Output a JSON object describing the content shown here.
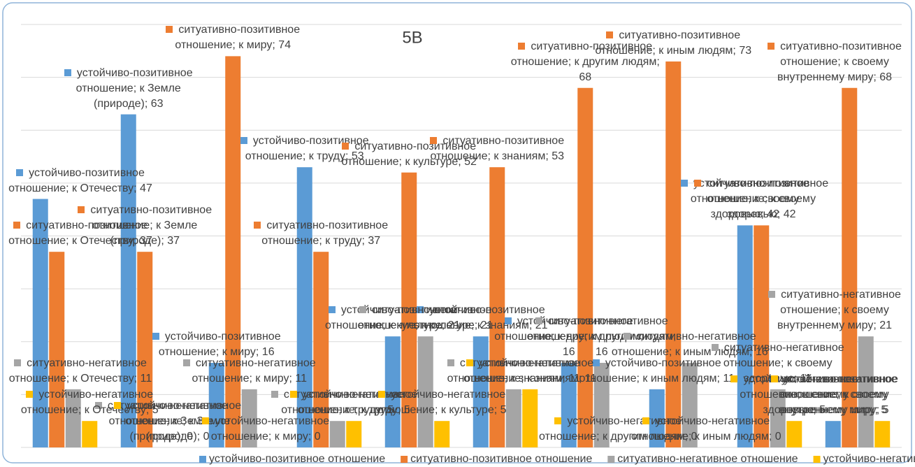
{
  "chart_data": {
    "type": "bar",
    "title": "5В",
    "ylim": [
      0,
      80
    ],
    "yticks": [
      0,
      10,
      20,
      30,
      40,
      50,
      60,
      70,
      80
    ],
    "grid": true,
    "legend": "bottom",
    "series": [
      {
        "name": "устойчиво-позитивное отношение",
        "color": "#5b9bd5",
        "values": [
          47,
          63,
          16,
          53,
          21,
          21,
          16,
          11,
          42,
          5
        ],
        "value_labels": [
          "устойчиво-позитивное отношение;  к Отечеству; 47",
          "устойчиво-позитивное отношение;  к Земле (природе); 63",
          "устойчиво-позитивное отношение;  к миру; 16",
          "устойчиво-позитивное отношение;  к труду; 53",
          "устойчиво-позитивное отношение;  к культуре; 21",
          "устойчиво-позитивное отношение;  к знаниям; 21",
          "устойчиво-позитивное отношение;  к другим людям; 16",
          "устойчиво-позитивное отношение;  к иным людям; 11",
          "устойчиво-позитивное отношение;  к своему здоровью; 42",
          "устойчиво-позитивное отношение;  к своему внутреннему миру; 5"
        ]
      },
      {
        "name": "ситуативно-позитивное отношение",
        "color": "#ed7d31",
        "values": [
          37,
          37,
          74,
          37,
          52,
          53,
          68,
          73,
          42,
          68
        ],
        "value_labels": [
          "ситуативно-позитивное отношение;  к Отечеству; 37",
          "ситуативно-позитивное отношение;  к Земле (природе); 37",
          "ситуативно-позитивное отношение;  к миру; 74",
          "ситуативно-позитивное отношение;  к труду; 37",
          "ситуативно-позитивное отношение;  к культуре; 52",
          "ситуативно-позитивное отношение;  к знаниям; 53",
          "ситуативно-позитивное отношение;  к другим людям; 68",
          "ситуативно-позитивное отношение;  к иным людям; 73",
          "ситуативно-позитивное отношение;  к своему здоровью; 42",
          "ситуативно-позитивное отношение;  к своему внутреннему миру; 68"
        ]
      },
      {
        "name": "ситуативно-негативное отношение",
        "color": "#a5a5a5",
        "values": [
          11,
          0,
          11,
          5,
          21,
          11,
          16,
          16,
          11,
          21
        ],
        "value_labels": [
          "ситуативно-негативное отношение;  к Отечеству; 11",
          "ситуативно-негативное отношение;  к Земле (природе); 0",
          "ситуативно-негативное отношение;  к миру; 11",
          "ситуативно-негативное отношение;  к труду; 5",
          "ситуативно-негативное отношение;  к культуре; 21",
          "ситуативно-негативное отношение;  к знаниям; 11",
          "ситуативно-негативное отношение;  к другим людям; 16",
          "ситуативно-негативное отношение;  к иным людям; 16",
          "ситуативно-негативное отношение;  к своему здоровью; 11",
          "ситуативно-негативное отношение;  к своему внутреннему миру; 21"
        ]
      },
      {
        "name": "устойчиво-негативное отношение",
        "color": "#ffc000",
        "values": [
          5,
          0,
          0,
          5,
          5,
          11,
          0,
          0,
          5,
          5
        ],
        "value_labels": [
          "устойчиво-негативное отношение;  к Отечеству; 5",
          "устойчиво-негативное отношение;  к Земле (природе); 0",
          "устойчиво-негативное отношение;  к миру; 0",
          "устойчиво-негативное отношение;  к труду; 5",
          "устойчиво-негативное отношение;  к культуре; 5",
          "устойчиво-негативное отношение;  к знаниям; 11",
          "устойчиво-негативное отношение;  к другим людям; 0",
          "устойчиво-негативное отношение;  к иным людям; 0",
          "устойчиво-негативное отношение;  к своему здоровью; 5",
          "устойчиво-негативное отношение;  к своему внутреннему миру; 5"
        ]
      }
    ]
  }
}
